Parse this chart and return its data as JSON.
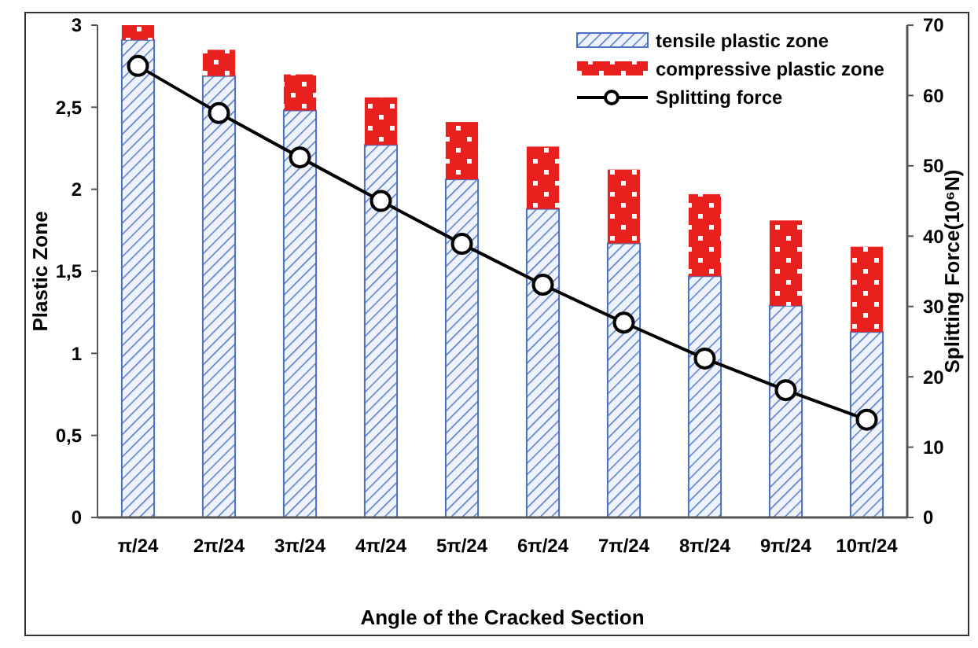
{
  "chart_data": {
    "type": "bar",
    "stacked": true,
    "xlabel": "Angle of the Cracked Section",
    "ylabel": "Plastic Zone",
    "y2label": "Splitting Force(10⁶N)",
    "categories": [
      "π/24",
      "2π/24",
      "3π/24",
      "4π/24",
      "5π/24",
      "6π/24",
      "7π/24",
      "8π/24",
      "9π/24",
      "10π/24"
    ],
    "series": [
      {
        "name": "tensile plastic zone",
        "color": "#4a6fc4",
        "values": [
          2.91,
          2.69,
          2.48,
          2.27,
          2.06,
          1.88,
          1.67,
          1.47,
          1.29,
          1.13
        ]
      },
      {
        "name": "compressive plastic zone",
        "color": "#e8201e",
        "values": [
          0.09,
          0.16,
          0.22,
          0.29,
          0.35,
          0.38,
          0.45,
          0.5,
          0.52,
          0.52
        ]
      },
      {
        "name": "Splitting force",
        "type": "line",
        "axis": "y2",
        "color": "#000000",
        "marker": "circle",
        "values": [
          64.2,
          57.5,
          51.2,
          45.0,
          38.9,
          33.1,
          27.7,
          22.6,
          18.1,
          13.9
        ]
      }
    ],
    "ylim": [
      0,
      3
    ],
    "yticks": [
      0,
      {
        "value": 0.5,
        "label": "0,5"
      },
      1,
      {
        "value": 1.5,
        "label": "1,5"
      },
      2,
      {
        "value": 2.5,
        "label": "2,5"
      },
      3
    ],
    "y2lim": [
      0,
      70
    ],
    "y2ticks": [
      0,
      10,
      20,
      30,
      40,
      50,
      60,
      70
    ],
    "grid": false,
    "legend": "top right"
  }
}
